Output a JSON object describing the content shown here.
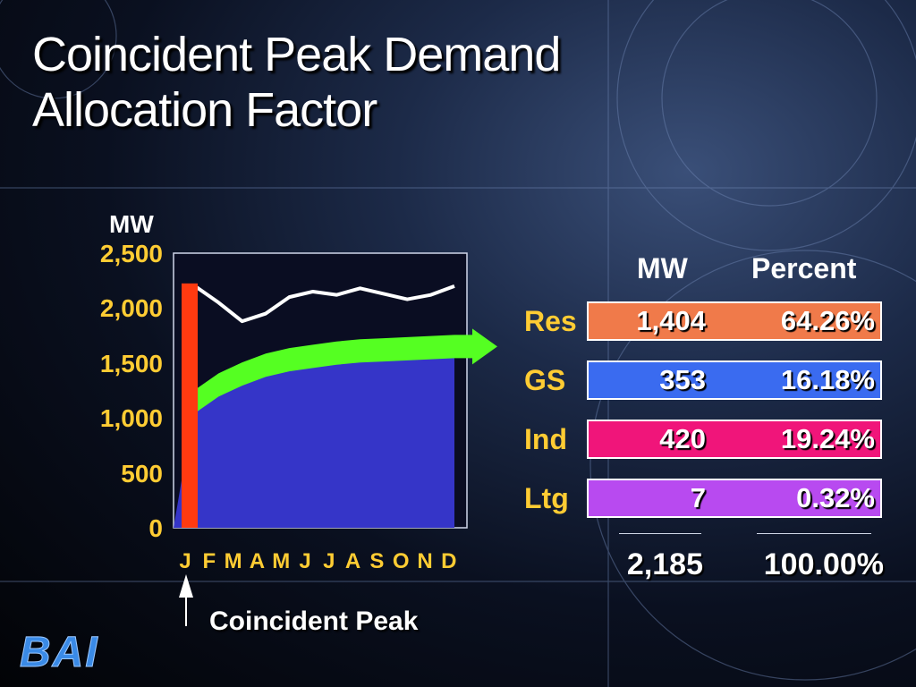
{
  "title_line1": "Coincident Peak Demand",
  "title_line2": "Allocation Factor",
  "chart_data": {
    "type": "area",
    "ylabel": "MW",
    "ylim": [
      0,
      2500
    ],
    "yticks": [
      "0",
      "500",
      "1,000",
      "1,500",
      "2,000",
      "2,500"
    ],
    "yticks_values": [
      0,
      500,
      1000,
      1500,
      2000,
      2500
    ],
    "categories": [
      "J",
      "F",
      "M",
      "A",
      "M",
      "J",
      "J",
      "A",
      "S",
      "O",
      "N",
      "D"
    ],
    "series": [
      {
        "name": "",
        "values": [
          2200,
          2050,
          1880,
          1950,
          2100,
          2150,
          2120,
          2180,
          2130,
          2080,
          2120,
          2200
        ]
      },
      {
        "name": "",
        "values": [
          1150,
          1300,
          1400,
          1480,
          1530,
          1560,
          1590,
          1610,
          1620,
          1630,
          1640,
          1650
        ]
      }
    ],
    "peak_month": "J",
    "peak_label": "Coincident Peak"
  },
  "table": {
    "header_mw": "MW",
    "header_pct": "Percent",
    "rows": [
      {
        "label": "Res",
        "mw": "1,404",
        "pct": "64.26%",
        "color": "#f07a4a"
      },
      {
        "label": "GS",
        "mw": "353",
        "pct": "16.18%",
        "color": "#3a6bf0"
      },
      {
        "label": "Ind",
        "mw": "420",
        "pct": "19.24%",
        "color": "#f0157a"
      },
      {
        "label": "Ltg",
        "mw": "7",
        "pct": "0.32%",
        "color": "#b84af0"
      }
    ],
    "total_mw": "2,185",
    "total_pct": "100.00%"
  },
  "logo_text": "BAI",
  "colors": {
    "plot_fill": "#3535c8",
    "peak_bar": "#ff3a10",
    "white_line": "#ffffff",
    "green_arrow": "#55ff22",
    "tick_text": "#ffcc33"
  }
}
